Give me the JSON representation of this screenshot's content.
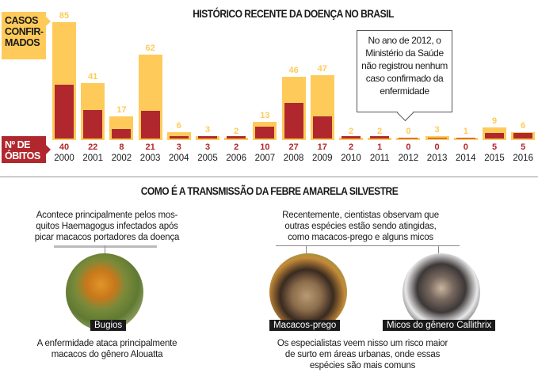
{
  "chart": {
    "title": "HISTÓRICO RECENTE DA DOENÇA NO BRASIL",
    "cases_label": "CASOS CONFIR-MADOS",
    "cases_label_lines": [
      "CASOS",
      "CONFIR-",
      "MADOS"
    ],
    "deaths_label_lines": [
      "Nº DE",
      "ÓBITOS"
    ],
    "callout": "No ano de 2012, o Ministério da Saúde não registrou nenhum caso confirmado da enfermidade",
    "colors": {
      "cases": "#fecb5a",
      "deaths": "#b0282d"
    }
  },
  "chart_data": {
    "type": "bar",
    "title": "HISTÓRICO RECENTE DA DOENÇA NO BRASIL",
    "categories": [
      "2000",
      "2001",
      "2002",
      "2003",
      "2004",
      "2005",
      "2006",
      "2007",
      "2008",
      "2009",
      "2010",
      "2011",
      "2012",
      "2013",
      "2014",
      "2015",
      "2016"
    ],
    "series": [
      {
        "name": "Casos confirmados",
        "values": [
          85,
          41,
          17,
          62,
          6,
          3,
          2,
          13,
          46,
          47,
          2,
          2,
          0,
          3,
          1,
          9,
          6
        ]
      },
      {
        "name": "Nº de óbitos",
        "values": [
          40,
          22,
          8,
          21,
          3,
          3,
          2,
          10,
          27,
          17,
          2,
          1,
          0,
          0,
          0,
          5,
          5
        ]
      }
    ],
    "xlabel": "",
    "ylabel": "",
    "annotations": [
      "No ano de 2012, o Ministério da Saúde não registrou nenhum caso confirmado da enfermidade"
    ],
    "legend": [
      "CASOS CONFIRMADOS",
      "Nº DE ÓBITOS"
    ]
  },
  "transmission": {
    "title": "COMO É A TRANSMISSÃO DA FEBRE AMARELA SILVESTRE",
    "left_intro": "Acontece principalmente pelos mos-quitos Haemagogus infectados após picar macacos portadores da doença",
    "left_intro_lines": [
      "Acontece principalmente pelos mos-",
      "quitos Haemagogus infectados após",
      "picar macacos portadores da doença"
    ],
    "left_photo_caption": "Bugios",
    "left_note_lines": [
      "A enfermidade ataca principalmente",
      "macacos do gênero Alouatta"
    ],
    "right_intro_lines": [
      "Recentemente, cientistas observam que",
      "outras espécies estão sendo atingidas,",
      "como macacos-prego e alguns micos"
    ],
    "right_photo1_caption": "Macacos-prego",
    "right_photo2_caption": "Micos do gênero Callithrix",
    "right_note_lines": [
      "Os especialistas veem nisso um risco maior",
      "de surto em áreas urbanas, onde essas",
      "espécies são mais comuns"
    ]
  }
}
